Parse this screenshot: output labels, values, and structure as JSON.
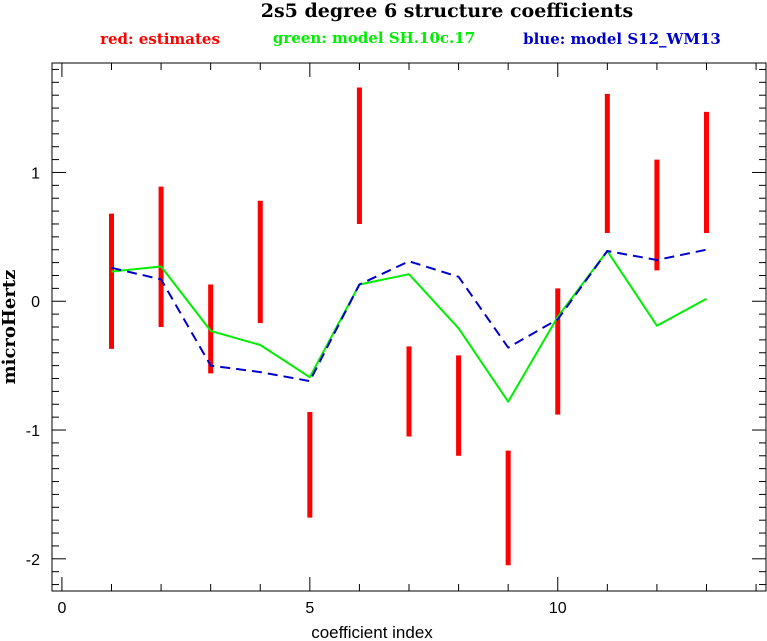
{
  "chart_data": {
    "type": "line",
    "title": "2s5 degree 6 structure coefficients",
    "xlabel": "coefficient index",
    "ylabel": "microHertz",
    "xlim": [
      -0.2,
      14.2
    ],
    "ylim": [
      -2.25,
      1.85
    ],
    "x_ticks": [
      0,
      5,
      10
    ],
    "y_ticks": [
      -2,
      -1,
      0,
      1
    ],
    "grid": false,
    "legend": [
      {
        "label": "red: estimates",
        "color": "#ff0000"
      },
      {
        "label": "green: model SH.10c.17",
        "color": "#00ee00"
      },
      {
        "label": "blue: model S12_WM13",
        "color": "#0000cc"
      }
    ],
    "series": [
      {
        "name": "estimates",
        "style": "errorbar",
        "color": "#ff0000",
        "x": [
          1,
          2,
          3,
          4,
          5,
          6,
          7,
          8,
          9,
          10,
          11,
          12,
          13
        ],
        "low": [
          -0.37,
          -0.2,
          -0.56,
          -0.17,
          -1.68,
          0.6,
          -1.05,
          -1.2,
          -2.05,
          -0.88,
          0.53,
          0.24,
          0.53
        ],
        "high": [
          0.68,
          0.89,
          0.13,
          0.78,
          -0.86,
          1.66,
          -0.35,
          -0.42,
          -1.16,
          0.1,
          1.61,
          1.1,
          1.47
        ]
      },
      {
        "name": "model SH.10c.17",
        "style": "solid",
        "color": "#00ee00",
        "x": [
          1,
          2,
          3,
          4,
          5,
          6,
          7,
          8,
          9,
          10,
          11,
          12,
          13
        ],
        "y": [
          0.23,
          0.27,
          -0.23,
          -0.34,
          -0.59,
          0.13,
          0.21,
          -0.21,
          -0.78,
          -0.12,
          0.39,
          -0.19,
          0.02
        ]
      },
      {
        "name": "model S12_WM13",
        "style": "dashed",
        "color": "#0000cc",
        "x": [
          1,
          2,
          3,
          4,
          5,
          6,
          7,
          8,
          9,
          10,
          11,
          12,
          13
        ],
        "y": [
          0.26,
          0.17,
          -0.5,
          -0.55,
          -0.62,
          0.13,
          0.31,
          0.19,
          -0.36,
          -0.14,
          0.39,
          0.32,
          0.4
        ]
      }
    ]
  }
}
